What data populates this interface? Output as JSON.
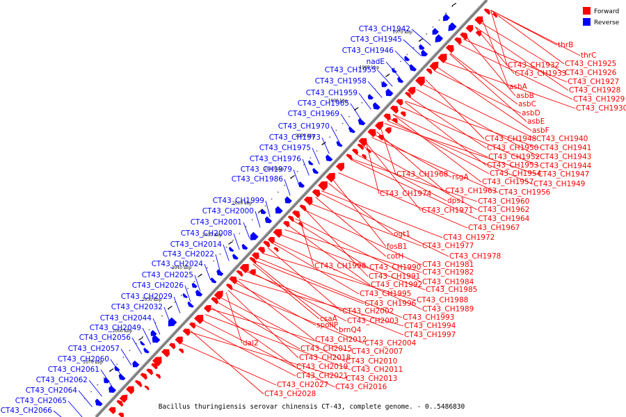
{
  "caption": "Bacillus thuringiensis serovar chinensis CT-43, complete genome. - 0..5486830",
  "legend": [
    {
      "label": "Forward",
      "color": "#ff0000"
    },
    {
      "label": "Reverse",
      "color": "#0000ff"
    }
  ],
  "colors": {
    "forward": "#ff0000",
    "reverse": "#0000ff",
    "backbone": "#808080"
  },
  "ticks": [
    "1960 kbp",
    "1970 kbp",
    "1980 kbp",
    "1990 kbp",
    "2000 kbp",
    "2010 kbp",
    "2020 kbp",
    "2030 kbp",
    "2040 kbp",
    "2050 kbp",
    "2060 kbp",
    "2070 kbp"
  ],
  "reverse_labels": [
    "CT43_CH1942",
    "CT43_CH1945",
    "CT43_CH1946",
    "nadE",
    "CT43_CH1955",
    "CT43_CH1958",
    "CT43_CH1959",
    "CT43_CH1965",
    "CT43_CH1969",
    "CT43_CH1970",
    "CT43_CH1973",
    "CT43_CH1975",
    "CT43_CH1976",
    "CT43_CH1979",
    "CT43_CH1986",
    "CT43_CH1999",
    "CT43_CH2000",
    "CT43_CH2001",
    "CT43_CH2008",
    "CT43_CH2014",
    "CT43_CH2022",
    "CT43_CH2024",
    "CT43_CH2025",
    "CT43_CH2026",
    "CT43_CH2029",
    "CT43_CH2032",
    "CT43_CH2044",
    "CT43_CH2049",
    "CT43_CH2056",
    "CT43_CH2057",
    "CT43_CH2060",
    "CT43_CH2061",
    "CT43_CH2062",
    "CT43_CH2064",
    "CT43_CH2065",
    "CT43_CH2066"
  ],
  "forward_labels": [
    "thrB",
    "thrC",
    "CT43_CH1925",
    "CT43_CH1932",
    "CT43_CH1926",
    "CT43_CH1933",
    "CT43_CH1927",
    "asbA",
    "CT43_CH1928",
    "asbB",
    "CT43_CH1929",
    "asbC",
    "CT43_CH1930",
    "asbD",
    "asbE",
    "asbF",
    "CT43_CH1948",
    "CT43_CH1940",
    "CT43_CH1950",
    "CT43_CH1941",
    "CT43_CH1952",
    "CT43_CH1943",
    "CT43_CH1953",
    "CT43_CH1944",
    "CT43_CH1954",
    "CT43_CH1947",
    "CT43_CH1968",
    "rsgA",
    "CT43_CH1957",
    "CT43_CH1949",
    "CT43_CH1963",
    "CT43_CH1956",
    "CT43_CH1974",
    "dps1",
    "CT43_CH1960",
    "CT43_CH1971",
    "CT43_CH1962",
    "CT43_CH1964",
    "CT43_CH1967",
    "ogt1",
    "CT43_CH1972",
    "CT43_CH1977",
    "fosB1",
    "CT43_CH1978",
    "cotH",
    "CT43_CH1981",
    "CT43_CH1998",
    "CT43_CH1990",
    "CT43_CH1982",
    "CT43_CH1991",
    "CT43_CH1984",
    "CT43_CH1992",
    "CT43_CH1985",
    "CT43_CH1995",
    "CT43_CH1988",
    "CT43_CH1996",
    "CT43_CH1989",
    "CT43_CH2002",
    "CT43_CH1993",
    "csaA",
    "CT43_CH2003",
    "CT43_CH1994",
    "spoIIP",
    "brnQ4",
    "CT43_CH1997",
    "CT43_CH2012",
    "CT43_CH2004",
    "dal2",
    "CT43_CH2015",
    "CT43_CH2007",
    "CT43_CH2018",
    "CT43_CH2010",
    "CT43_CH2019",
    "CT43_CH2011",
    "CT43_CH2021",
    "CT43_CH2013",
    "CT43_CH2027",
    "CT43_CH2016",
    "CT43_CH2028"
  ]
}
